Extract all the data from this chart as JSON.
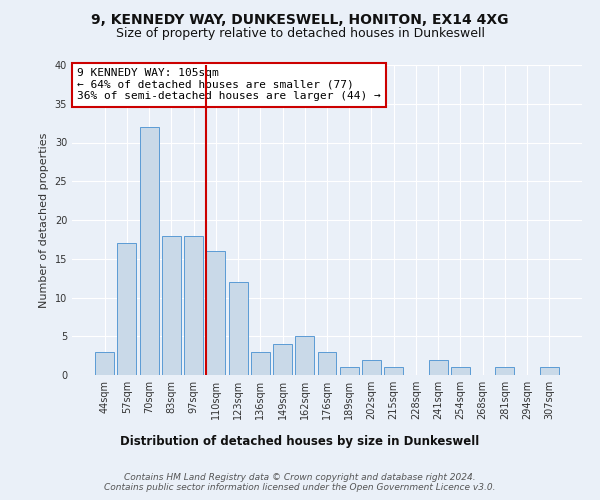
{
  "title1": "9, KENNEDY WAY, DUNKESWELL, HONITON, EX14 4XG",
  "title2": "Size of property relative to detached houses in Dunkeswell",
  "xlabel": "Distribution of detached houses by size in Dunkeswell",
  "ylabel": "Number of detached properties",
  "categories": [
    "44sqm",
    "57sqm",
    "70sqm",
    "83sqm",
    "97sqm",
    "110sqm",
    "123sqm",
    "136sqm",
    "149sqm",
    "162sqm",
    "176sqm",
    "189sqm",
    "202sqm",
    "215sqm",
    "228sqm",
    "241sqm",
    "254sqm",
    "268sqm",
    "281sqm",
    "294sqm",
    "307sqm"
  ],
  "values": [
    3,
    17,
    32,
    18,
    18,
    16,
    12,
    3,
    4,
    5,
    3,
    1,
    2,
    1,
    0,
    2,
    1,
    0,
    1,
    0,
    1
  ],
  "bar_color": "#c9d9e8",
  "bar_edge_color": "#5b9bd5",
  "vline_index": 5,
  "vline_color": "#cc0000",
  "annotation_text": "9 KENNEDY WAY: 105sqm\n← 64% of detached houses are smaller (77)\n36% of semi-detached houses are larger (44) →",
  "annotation_box_color": "#ffffff",
  "annotation_box_edge": "#cc0000",
  "ylim": [
    0,
    40
  ],
  "yticks": [
    0,
    5,
    10,
    15,
    20,
    25,
    30,
    35,
    40
  ],
  "bg_color": "#eaf0f8",
  "plot_bg_color": "#eaf0f8",
  "footer": "Contains HM Land Registry data © Crown copyright and database right 2024.\nContains public sector information licensed under the Open Government Licence v3.0.",
  "title_fontsize": 10,
  "subtitle_fontsize": 9,
  "xlabel_fontsize": 8.5,
  "ylabel_fontsize": 8,
  "tick_fontsize": 7,
  "annotation_fontsize": 8,
  "footer_fontsize": 6.5
}
